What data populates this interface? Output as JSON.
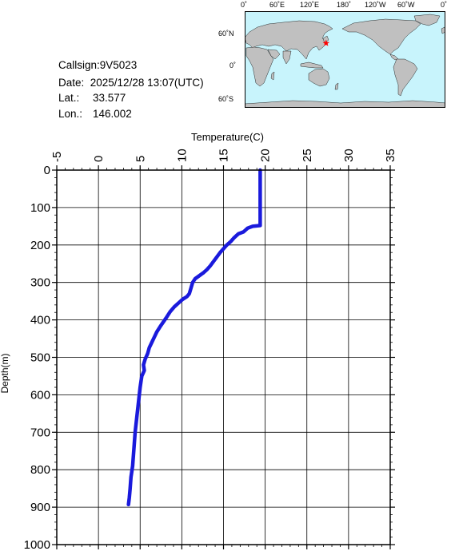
{
  "station": {
    "callsign": "Callsign:9V5023",
    "date": "Date:  2025/12/28 13:07(UTC)",
    "lat_label": "Lat.:",
    "lat_value": "33.577",
    "lon_label": "Lon.:",
    "lon_value": "146.002"
  },
  "map": {
    "top_labels": [
      "0˚",
      "60˚E",
      "120˚E",
      "180˚",
      "120˚W",
      "60˚W",
      "0˚"
    ],
    "left_labels": [
      "60˚N",
      "0˚",
      "60˚S"
    ],
    "ocean_color": "#c8f4fc",
    "land_color": "#c0c0c0",
    "marker_color": "#ff0000",
    "marker": {
      "lon": 146.002,
      "lat": 33.577
    }
  },
  "chart_data": {
    "type": "line",
    "xlabel": "Temperature(C)",
    "ylabel": "Depth(m)",
    "xlim": [
      -5,
      35
    ],
    "ylim": [
      1000,
      0
    ],
    "x_ticks": [
      "-5",
      "0",
      "5",
      "10",
      "15",
      "20",
      "25",
      "30",
      "35"
    ],
    "y_ticks": [
      "0",
      "100",
      "200",
      "300",
      "400",
      "500",
      "600",
      "700",
      "800",
      "900",
      "1000"
    ],
    "grid": true,
    "line_color": "#1a1adc",
    "series": [
      {
        "points": [
          [
            19.4,
            0
          ],
          [
            19.4,
            50
          ],
          [
            19.4,
            100
          ],
          [
            19.4,
            130
          ],
          [
            19.4,
            148
          ],
          [
            18.5,
            150
          ],
          [
            17.9,
            155
          ],
          [
            17.4,
            165
          ],
          [
            16.8,
            170
          ],
          [
            16.3,
            180
          ],
          [
            15.9,
            190
          ],
          [
            15.4,
            200
          ],
          [
            15.0,
            210
          ],
          [
            14.6,
            220
          ],
          [
            14.2,
            232
          ],
          [
            13.8,
            244
          ],
          [
            13.4,
            256
          ],
          [
            13.0,
            266
          ],
          [
            12.6,
            274
          ],
          [
            12.1,
            282
          ],
          [
            11.6,
            290
          ],
          [
            11.3,
            300
          ],
          [
            11.1,
            315
          ],
          [
            10.9,
            330
          ],
          [
            10.6,
            338
          ],
          [
            10.1,
            345
          ],
          [
            9.6,
            355
          ],
          [
            9.1,
            365
          ],
          [
            8.6,
            378
          ],
          [
            8.2,
            392
          ],
          [
            7.8,
            405
          ],
          [
            7.4,
            418
          ],
          [
            7.0,
            432
          ],
          [
            6.7,
            446
          ],
          [
            6.4,
            460
          ],
          [
            6.1,
            474
          ],
          [
            5.9,
            490
          ],
          [
            5.6,
            505
          ],
          [
            5.4,
            520
          ],
          [
            5.5,
            535
          ],
          [
            5.2,
            550
          ],
          [
            5.1,
            565
          ],
          [
            5.0,
            580
          ],
          [
            4.9,
            600
          ],
          [
            4.8,
            620
          ],
          [
            4.7,
            640
          ],
          [
            4.6,
            660
          ],
          [
            4.5,
            680
          ],
          [
            4.4,
            700
          ],
          [
            4.3,
            730
          ],
          [
            4.2,
            760
          ],
          [
            4.1,
            790
          ],
          [
            3.9,
            820
          ],
          [
            3.8,
            850
          ],
          [
            3.7,
            875
          ],
          [
            3.6,
            893
          ]
        ]
      }
    ]
  }
}
